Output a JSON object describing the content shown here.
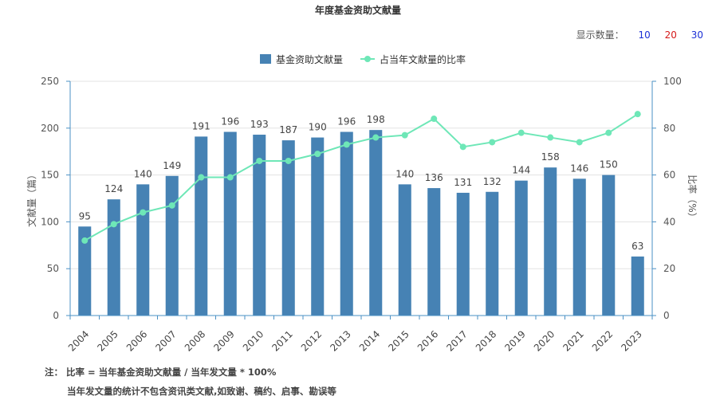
{
  "header": {
    "title": "年度基金资助文献量"
  },
  "display_count": {
    "label": "显示数量：",
    "options": [
      {
        "label": "10",
        "color": "#1a2fd6"
      },
      {
        "label": "20",
        "color": "#d61a1a"
      },
      {
        "label": "30",
        "color": "#1a2fd6"
      }
    ]
  },
  "notes": {
    "line1": "注： 比率 = 当年基金资助文献量 / 当年发文量 * 100%",
    "line2": "当年发文量的统计不包含资讯类文献,如致谢、稿约、启事、勘误等"
  },
  "chart_data": {
    "type": "bar",
    "categories": [
      "2004",
      "2005",
      "2006",
      "2007",
      "2008",
      "2009",
      "2010",
      "2011",
      "2012",
      "2013",
      "2014",
      "2015",
      "2016",
      "2017",
      "2018",
      "2019",
      "2020",
      "2021",
      "2022",
      "2023"
    ],
    "series": [
      {
        "name": "基金资助文献量",
        "type": "bar",
        "axis": "left",
        "color": "#4682b4",
        "values": [
          95,
          124,
          140,
          149,
          191,
          196,
          193,
          187,
          190,
          196,
          198,
          140,
          136,
          131,
          132,
          144,
          158,
          146,
          150,
          63
        ]
      },
      {
        "name": "占当年文献量的比率",
        "type": "line",
        "axis": "right",
        "color": "#6ee7b7",
        "values": [
          32,
          39,
          44,
          47,
          59,
          59,
          66,
          66,
          69,
          73,
          76,
          77,
          84,
          72,
          74,
          78,
          76,
          74,
          78,
          86
        ]
      }
    ],
    "ylabel": "文献量（篇）",
    "y2label": "比率（%）",
    "ylim": [
      0,
      250
    ],
    "y2lim": [
      0,
      100
    ],
    "yticks": [
      0,
      50,
      100,
      150,
      200,
      250
    ],
    "y2ticks": [
      0,
      20,
      40,
      60,
      80,
      100
    ],
    "legend": "top-center",
    "grid": true,
    "data_labels": true
  }
}
